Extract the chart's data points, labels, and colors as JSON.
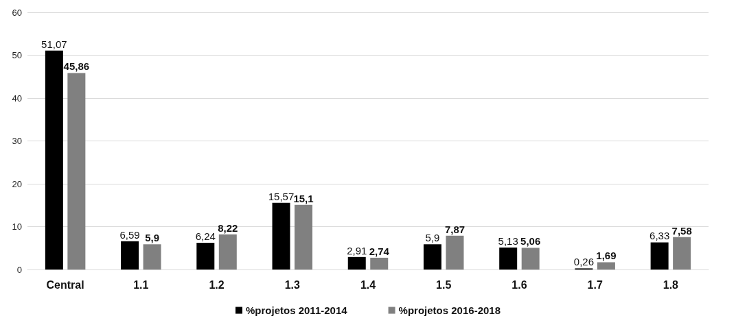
{
  "chart_data": {
    "type": "bar",
    "categories": [
      "Central",
      "1.1",
      "1.2",
      "1.3",
      "1.4",
      "1.5",
      "1.6",
      "1.7",
      "1.8"
    ],
    "series": [
      {
        "name": "%projetos 2011-2014",
        "color": "#000000",
        "values": [
          51.07,
          6.59,
          6.24,
          15.57,
          2.91,
          5.9,
          5.13,
          0.26,
          6.33
        ],
        "value_labels": [
          "51,07",
          "6,59",
          "6,24",
          "15,57",
          "2,91",
          "5,9",
          "5,13",
          "0,26",
          "6,33"
        ]
      },
      {
        "name": "%projetos 2016-2018",
        "color": "#808080",
        "values": [
          45.86,
          5.9,
          8.22,
          15.1,
          2.74,
          7.87,
          5.06,
          1.69,
          7.58
        ],
        "value_labels": [
          "45,86",
          "5,9",
          "8,22",
          "15,1",
          "2,74",
          "7,87",
          "5,06",
          "1,69",
          "7,58"
        ]
      }
    ],
    "ylim": [
      0,
      60
    ],
    "yticks": [
      0,
      10,
      20,
      30,
      40,
      50,
      60
    ],
    "grid": "y",
    "legend": "bottom"
  }
}
